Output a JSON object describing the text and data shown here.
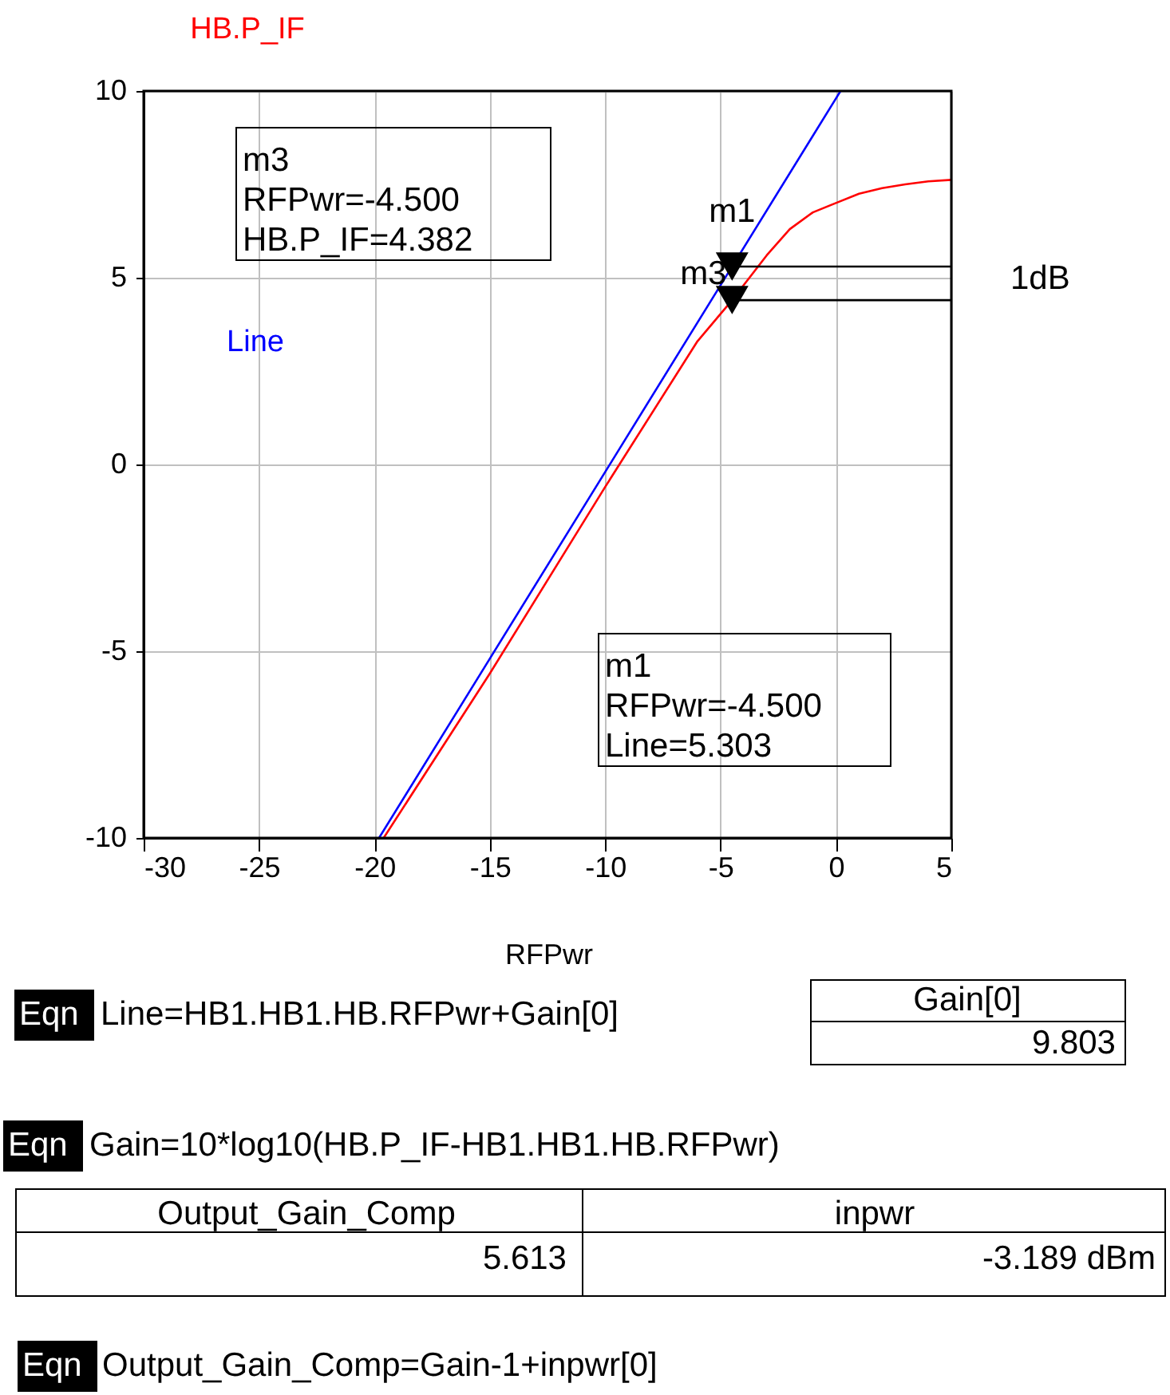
{
  "chart_data": {
    "type": "line",
    "xlabel": "RFPwr",
    "ylabel": "HB.P_IF",
    "xlim": [
      -30,
      5
    ],
    "ylim": [
      -10,
      10
    ],
    "xticks": [
      -30,
      -25,
      -20,
      -15,
      -10,
      -5,
      0,
      5
    ],
    "yticks": [
      -10,
      -5,
      0,
      5,
      10
    ],
    "grid": true,
    "series": [
      {
        "name": "Line",
        "color": "#0000ff",
        "x": [
          -19.8,
          -15,
          -10,
          -5,
          0,
          0.2
        ],
        "values": [
          -10,
          -5.2,
          -0.2,
          4.8,
          9.8,
          10
        ]
      },
      {
        "color": "#ff0000",
        "x": [
          -19.6,
          -15,
          -10,
          -6,
          -4.5,
          -3,
          -2,
          -1,
          0,
          1,
          2,
          3,
          4,
          5
        ],
        "values": [
          -10,
          -5.6,
          -0.6,
          3.3,
          4.4,
          5.6,
          6.3,
          6.75,
          7.0,
          7.25,
          7.4,
          7.5,
          7.58,
          7.62
        ]
      },
      {
        "type": "line",
        "color": "#000000",
        "x": [
          -4.5,
          5
        ],
        "values": [
          5.3,
          5.3
        ]
      },
      {
        "type": "line",
        "color": "#000000",
        "x": [
          -4.5,
          5
        ],
        "values": [
          4.4,
          4.4
        ]
      },
      {
        "type": "scatter",
        "marker": "triangle",
        "color": "#000000",
        "x": [
          -4.5,
          -4.5
        ],
        "values": [
          5.3,
          4.4
        ]
      }
    ],
    "annotations": [
      {
        "text": "m1",
        "x": -4.5,
        "y": 5.3
      },
      {
        "text": "m3",
        "x": -4.5,
        "y": 4.4
      },
      "m3\nRFPwr=-4.500\nHB.P_IF=4.382",
      "m1\nRFPwr=-4.500\nLine=5.303",
      "1dB",
      "Eqn",
      "Line=HB1.HB1.HB.RFPwr+Gain[0]",
      "Gain[0]",
      "9.803",
      "Eqn",
      "Gain=10*log10(HB.P_IF-HB1.HB1.HB.RFPwr)",
      "Output_Gain_Comp",
      "5.613",
      "inpwr",
      "-3.189 dBm",
      "Eqn",
      "Output_Gain_Comp=Gain-1+inpwr[0]"
    ]
  }
}
